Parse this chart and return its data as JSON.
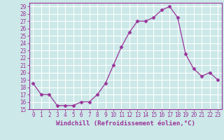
{
  "x": [
    0,
    1,
    2,
    3,
    4,
    5,
    6,
    7,
    8,
    9,
    10,
    11,
    12,
    13,
    14,
    15,
    16,
    17,
    18,
    19,
    20,
    21,
    22,
    23
  ],
  "y": [
    18.5,
    17.0,
    17.0,
    15.5,
    15.5,
    15.5,
    16.0,
    16.0,
    17.0,
    18.5,
    21.0,
    23.5,
    25.5,
    27.0,
    27.0,
    27.5,
    28.5,
    29.0,
    27.5,
    22.5,
    20.5,
    19.5,
    20.0,
    19.0
  ],
  "line_color": "#993399",
  "marker": "D",
  "marker_size": 2.5,
  "bg_color": "#cce8e8",
  "grid_color": "#ffffff",
  "xlabel": "Windchill (Refroidissement éolien,°C)",
  "ylim": [
    15,
    29.5
  ],
  "xlim": [
    -0.5,
    23.5
  ],
  "yticks": [
    15,
    16,
    17,
    18,
    19,
    20,
    21,
    22,
    23,
    24,
    25,
    26,
    27,
    28,
    29
  ],
  "xticks": [
    0,
    1,
    2,
    3,
    4,
    5,
    6,
    7,
    8,
    9,
    10,
    11,
    12,
    13,
    14,
    15,
    16,
    17,
    18,
    19,
    20,
    21,
    22,
    23
  ],
  "tick_fontsize": 5.5,
  "xlabel_fontsize": 6.5
}
